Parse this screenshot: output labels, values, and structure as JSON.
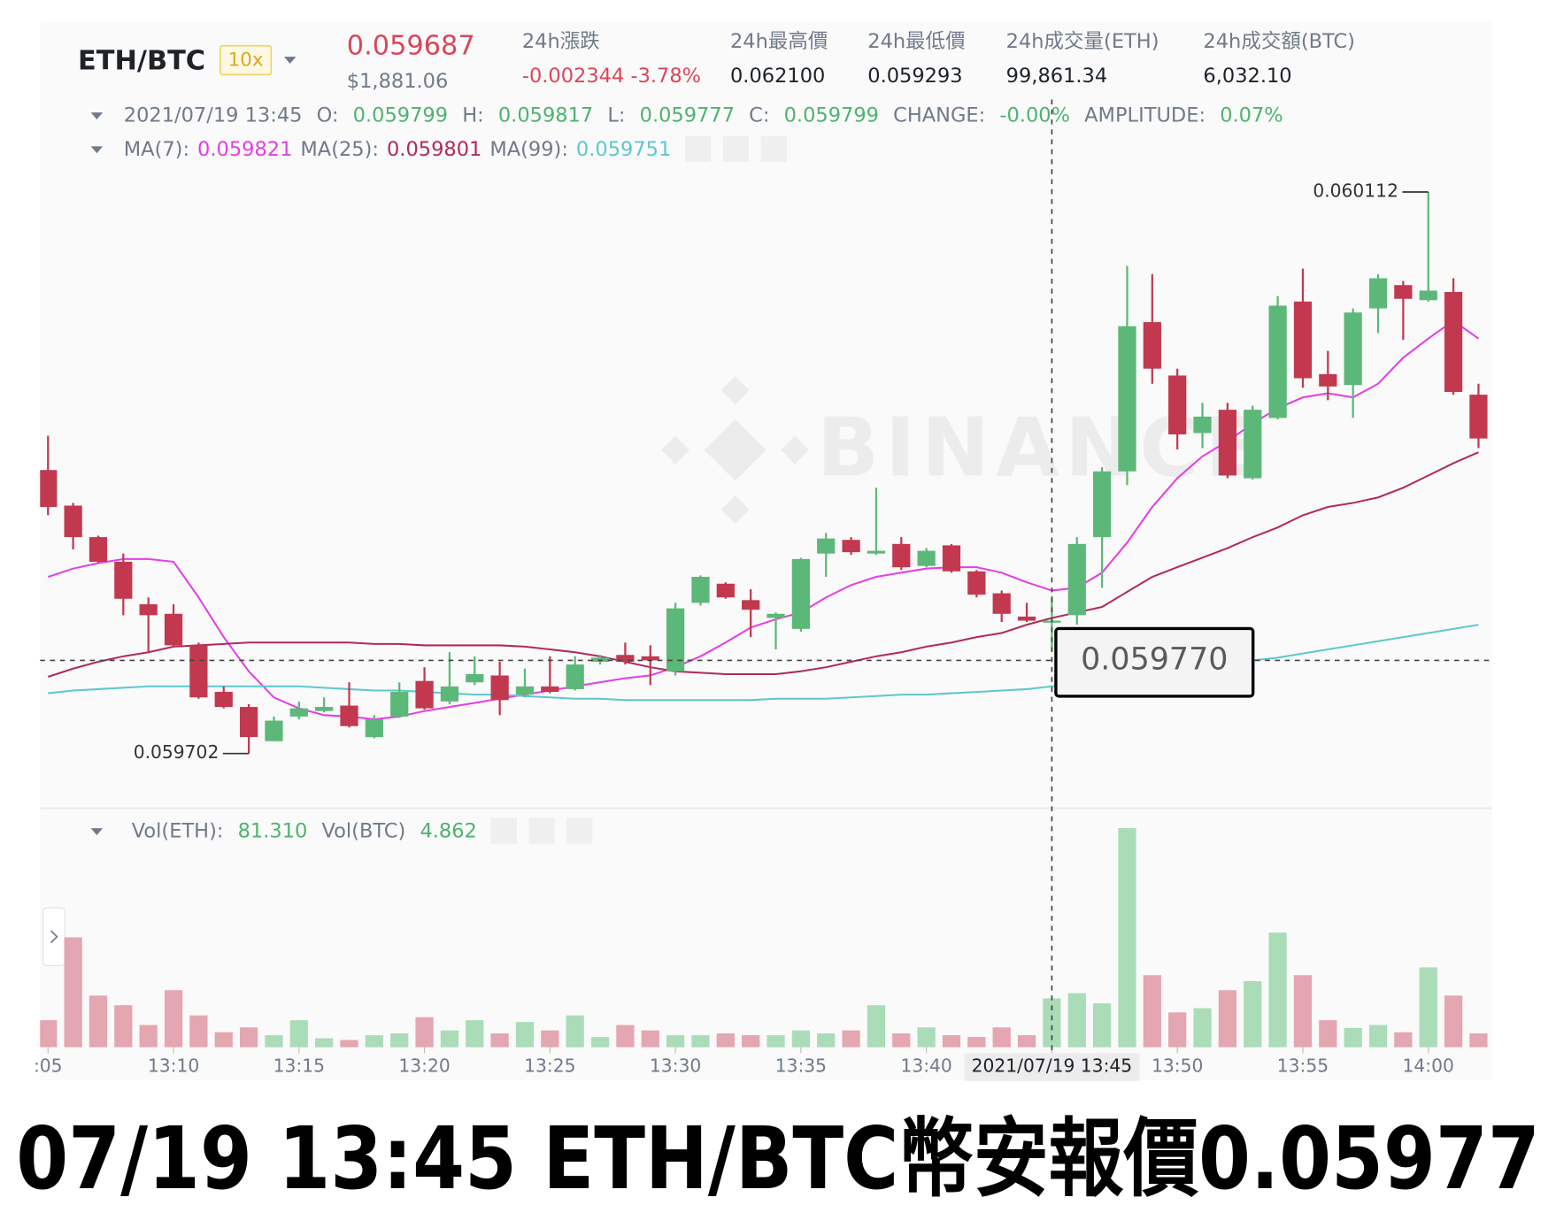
{
  "header": {
    "symbol": "ETH/BTC",
    "leverage": "10x",
    "price": "0.059687",
    "price_usd": "$1,881.06",
    "change_label": "24h漲跌",
    "change": "-0.002344 -3.78%",
    "high_label": "24h最高價",
    "high": "0.062100",
    "low_label": "24h最低價",
    "low": "0.059293",
    "volume_label": "24h成交量(ETH)",
    "volume": "99,861.34",
    "turnover_label": "24h成交額(BTC)",
    "turnover": "6,032.10"
  },
  "ohlc_legend": {
    "time": "2021/07/19 13:45",
    "open_label": "O:",
    "high_label": "H:",
    "low_label": "L:",
    "close_label": "C:",
    "change_label": "CHANGE:",
    "change": "-0.00%",
    "amplitude_label": "AMPLITUDE:",
    "amplitude": "0.07%"
  },
  "vol_legend": {
    "eth_label": "Vol(ETH):",
    "eth_value": "81.310",
    "btc_label": "Vol(BTC)",
    "btc_value": "4.862"
  },
  "watermark": "BINANCE",
  "caption": "07/19 13:45 ETH/BTC幣安報價0.05977",
  "chart_data": {
    "type": "candlestick",
    "categories": [
      ":05",
      null,
      null,
      null,
      null,
      "13:10",
      null,
      null,
      null,
      null,
      "13:15",
      null,
      null,
      null,
      null,
      "13:20",
      null,
      null,
      null,
      null,
      "13:25",
      null,
      null,
      null,
      null,
      "13:30",
      null,
      null,
      null,
      null,
      "13:35",
      null,
      null,
      null,
      null,
      "13:40",
      null,
      null,
      null,
      null,
      "2021/07/19 13:45",
      null,
      null,
      null,
      null,
      "13:50",
      null,
      null,
      null,
      null,
      "13:55",
      null,
      null,
      null,
      null,
      "14:00",
      null,
      null
    ],
    "open": [
      0.059909,
      0.059883,
      0.05986,
      0.059842,
      0.059811,
      0.059804,
      0.059781,
      0.059747,
      0.059736,
      0.059711,
      0.059729,
      0.059733,
      0.059737,
      0.059714,
      0.059729,
      0.059755,
      0.05974,
      0.059754,
      0.059759,
      0.059745,
      0.059751,
      0.059749,
      0.059769,
      0.059774,
      0.059773,
      0.059762,
      0.059812,
      0.059826,
      0.059814,
      0.059801,
      0.059793,
      0.059848,
      0.059858,
      0.059848,
      0.059855,
      0.059839,
      0.059854,
      0.059835,
      0.059819,
      0.059802,
      0.059799,
      0.059803,
      0.05986,
      0.059908,
      0.060017,
      0.059978,
      0.059936,
      0.059953,
      0.059903,
      0.059947,
      0.060032,
      0.059979,
      0.059971,
      0.060027,
      0.060044,
      0.060033,
      0.060039,
      0.059964
    ],
    "high": [
      0.059934,
      0.059885,
      0.059861,
      0.059848,
      0.059816,
      0.059811,
      0.059783,
      0.059751,
      0.059738,
      0.059729,
      0.05974,
      0.059743,
      0.059754,
      0.05973,
      0.059754,
      0.059765,
      0.059776,
      0.059773,
      0.059769,
      0.059764,
      0.059773,
      0.059773,
      0.059774,
      0.059783,
      0.059781,
      0.059812,
      0.059832,
      0.059827,
      0.059822,
      0.059805,
      0.059845,
      0.059863,
      0.05986,
      0.059896,
      0.05986,
      0.059852,
      0.059855,
      0.059836,
      0.059821,
      0.059812,
      0.059817,
      0.05986,
      0.059911,
      0.060058,
      0.060052,
      0.059983,
      0.059958,
      0.059958,
      0.059956,
      0.060036,
      0.060056,
      0.059996,
      0.060027,
      0.060052,
      0.060047,
      0.060112,
      0.060049,
      0.059972
    ],
    "low": [
      0.059876,
      0.059851,
      0.059841,
      0.059803,
      0.059776,
      0.05978,
      0.059742,
      0.059735,
      0.059702,
      0.059711,
      0.059727,
      0.059732,
      0.059721,
      0.059713,
      0.059728,
      0.059734,
      0.059738,
      0.059752,
      0.05973,
      0.059743,
      0.059746,
      0.059748,
      0.059767,
      0.059767,
      0.059752,
      0.059759,
      0.05981,
      0.059815,
      0.059787,
      0.059778,
      0.059791,
      0.059831,
      0.059847,
      0.059847,
      0.059836,
      0.059838,
      0.059834,
      0.059816,
      0.059798,
      0.059798,
      0.059777,
      0.059796,
      0.059823,
      0.059898,
      0.059972,
      0.059924,
      0.059925,
      0.059903,
      0.059902,
      0.059946,
      0.059969,
      0.05996,
      0.059947,
      0.060009,
      0.060004,
      0.060032,
      0.059964,
      0.059925
    ],
    "close": [
      0.059882,
      0.05986,
      0.059842,
      0.059815,
      0.059803,
      0.059781,
      0.059743,
      0.059736,
      0.059714,
      0.059726,
      0.059735,
      0.059736,
      0.059722,
      0.059727,
      0.059747,
      0.059735,
      0.059751,
      0.05976,
      0.059741,
      0.059751,
      0.059747,
      0.059767,
      0.059772,
      0.059769,
      0.05977,
      0.059808,
      0.059831,
      0.059816,
      0.059807,
      0.059804,
      0.059844,
      0.059859,
      0.059849,
      0.05985,
      0.059838,
      0.05985,
      0.059835,
      0.059818,
      0.059804,
      0.059799,
      0.059799,
      0.059855,
      0.059908,
      0.060014,
      0.059983,
      0.059935,
      0.059948,
      0.059905,
      0.059953,
      0.060029,
      0.059976,
      0.05997,
      0.060024,
      0.060049,
      0.060034,
      0.06004,
      0.059966,
      0.059932
    ],
    "up_color": "#5cb878",
    "down_color": "#c2394f",
    "ylim": [
      0.059662,
      0.060234
    ],
    "lines": [
      {
        "name": "MA(7):",
        "color": "#e43ee4",
        "values": [
          0.059831,
          0.059837,
          0.059841,
          0.059844,
          0.059844,
          0.059842,
          0.059816,
          0.059787,
          0.059762,
          0.059743,
          0.059735,
          0.05973,
          0.059729,
          0.059727,
          0.059729,
          0.059733,
          0.059736,
          0.059739,
          0.059742,
          0.059745,
          0.059748,
          0.059751,
          0.059754,
          0.059757,
          0.059759,
          0.059765,
          0.059773,
          0.059783,
          0.059794,
          0.0598,
          0.059805,
          0.059816,
          0.059825,
          0.059831,
          0.059834,
          0.059837,
          0.059838,
          0.059838,
          0.059834,
          0.059827,
          0.059821,
          0.059823,
          0.059834,
          0.059856,
          0.059882,
          0.059903,
          0.059919,
          0.05993,
          0.059943,
          0.059954,
          0.059962,
          0.059965,
          0.059962,
          0.059972,
          0.059991,
          0.060005,
          0.060018,
          0.060005
        ]
      },
      {
        "name": "MA(25):",
        "color": "#b02a5c",
        "values": [
          0.059758,
          0.059764,
          0.059769,
          0.059773,
          0.059776,
          0.05978,
          0.059781,
          0.059782,
          0.059783,
          0.059783,
          0.059783,
          0.059783,
          0.059783,
          0.059782,
          0.059782,
          0.059781,
          0.059781,
          0.059781,
          0.059781,
          0.05978,
          0.059778,
          0.059776,
          0.059773,
          0.059769,
          0.059765,
          0.059762,
          0.059761,
          0.05976,
          0.05976,
          0.05976,
          0.059762,
          0.059765,
          0.059769,
          0.059773,
          0.059776,
          0.05978,
          0.059783,
          0.059787,
          0.05979,
          0.059796,
          0.059801,
          0.059805,
          0.059809,
          0.05982,
          0.059831,
          0.059838,
          0.059845,
          0.059852,
          0.05986,
          0.059867,
          0.059876,
          0.059882,
          0.059885,
          0.059889,
          0.059896,
          0.059905,
          0.059914,
          0.059922
        ]
      },
      {
        "name": "MA(99):",
        "color": "#5cc8cc",
        "values": [
          0.059746,
          0.059748,
          0.059749,
          0.05975,
          0.059751,
          0.059751,
          0.059751,
          0.059751,
          0.059751,
          0.059751,
          0.059751,
          0.05975,
          0.059749,
          0.059748,
          0.059748,
          0.059747,
          0.059746,
          0.059745,
          0.059745,
          0.059744,
          0.059743,
          0.059742,
          0.059742,
          0.059741,
          0.059741,
          0.059741,
          0.059741,
          0.059741,
          0.059741,
          0.059742,
          0.059742,
          0.059742,
          0.059743,
          0.059744,
          0.059745,
          0.059745,
          0.059746,
          0.059747,
          0.059748,
          0.059749,
          0.059751,
          0.059752,
          0.059754,
          0.059757,
          0.059759,
          0.059762,
          0.059765,
          0.059767,
          0.05977,
          0.059772,
          0.059775,
          0.059778,
          0.059781,
          0.059784,
          0.059787,
          0.05979,
          0.059793,
          0.059796
        ]
      }
    ],
    "volume": {
      "values": [
        45,
        183,
        86,
        70,
        37,
        95,
        53,
        25,
        33,
        20,
        45,
        15,
        12,
        20,
        23,
        50,
        28,
        45,
        23,
        42,
        28,
        53,
        17,
        37,
        28,
        20,
        20,
        23,
        20,
        20,
        28,
        23,
        28,
        70,
        23,
        33,
        20,
        17,
        33,
        20,
        81.31,
        90,
        73,
        365,
        120,
        58,
        65,
        95,
        110,
        191,
        120,
        45,
        32,
        37,
        25,
        133,
        86,
        23
      ],
      "up_color": "#aadcb8",
      "down_color": "#e4a6b0",
      "ylim": [
        0,
        393
      ]
    },
    "crosshair": {
      "x": "2021/07/19 13:45",
      "y": {
        "value": 0.05977,
        "label": "0.059770"
      }
    }
  }
}
